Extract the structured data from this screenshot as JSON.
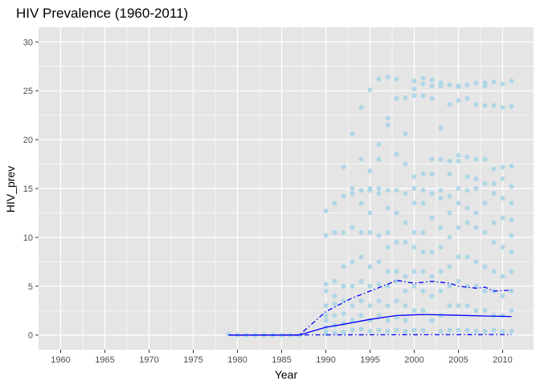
{
  "chart_data": {
    "type": "scatter",
    "title": "HIV Prevalence (1960-2011)",
    "xlabel": "Year",
    "ylabel": "HIV_prev",
    "xlim": [
      1957.5,
      2013.5
    ],
    "ylim": [
      -1.5,
      31.5
    ],
    "x_ticks": [
      1960,
      1965,
      1970,
      1975,
      1980,
      1985,
      1990,
      1995,
      2000,
      2005,
      2010
    ],
    "y_ticks": [
      0,
      5,
      10,
      15,
      20,
      25,
      30
    ],
    "grid": true,
    "legend": "none",
    "colors": {
      "panel": "#e5e5e5",
      "grid": "#ffffff",
      "points": "#a6d4e6",
      "lines": "#0000ff"
    },
    "series": [
      {
        "type": "scatter",
        "x": [
          1979,
          1980,
          1981,
          1982,
          1983,
          1984,
          1985,
          1986,
          1987,
          1990,
          1990,
          1990,
          1990,
          1990,
          1990,
          1990,
          1990,
          1990,
          1990,
          1991,
          1991,
          1991,
          1991,
          1991,
          1991,
          1991,
          1991,
          1992,
          1992,
          1992,
          1992,
          1992,
          1992,
          1992,
          1992,
          1992,
          1993,
          1993,
          1993,
          1993,
          1993,
          1993,
          1993,
          1993,
          1993,
          1994,
          1994,
          1994,
          1994,
          1994,
          1994,
          1994,
          1994,
          1994,
          1994,
          1995,
          1995,
          1995,
          1995,
          1995,
          1995,
          1995,
          1995,
          1995,
          1995,
          1995,
          1996,
          1996,
          1996,
          1996,
          1996,
          1996,
          1996,
          1996,
          1996,
          1996,
          1996,
          1997,
          1997,
          1997,
          1997,
          1997,
          1997,
          1997,
          1997,
          1997,
          1997,
          1997,
          1997,
          1998,
          1998,
          1998,
          1998,
          1998,
          1998,
          1998,
          1998,
          1998,
          1998,
          1998,
          1999,
          1999,
          1999,
          1999,
          1999,
          1999,
          1999,
          1999,
          1999,
          1999,
          1999,
          2000,
          2000,
          2000,
          2000,
          2000,
          2000,
          2000,
          2000,
          2000,
          2000,
          2000,
          2000,
          2001,
          2001,
          2001,
          2001,
          2001,
          2001,
          2001,
          2001,
          2001,
          2001,
          2001,
          2001,
          2002,
          2002,
          2002,
          2002,
          2002,
          2002,
          2002,
          2002,
          2002,
          2002,
          2002,
          2003,
          2003,
          2003,
          2003,
          2003,
          2003,
          2003,
          2003,
          2003,
          2003,
          2003,
          2003,
          2004,
          2004,
          2004,
          2004,
          2004,
          2004,
          2004,
          2004,
          2004,
          2004,
          2004,
          2005,
          2005,
          2005,
          2005,
          2005,
          2005,
          2005,
          2005,
          2005,
          2005,
          2005,
          2005,
          2006,
          2006,
          2006,
          2006,
          2006,
          2006,
          2006,
          2006,
          2006,
          2006,
          2006,
          2007,
          2007,
          2007,
          2007,
          2007,
          2007,
          2007,
          2007,
          2007,
          2007,
          2007,
          2008,
          2008,
          2008,
          2008,
          2008,
          2008,
          2008,
          2008,
          2008,
          2008,
          2008,
          2009,
          2009,
          2009,
          2009,
          2009,
          2009,
          2009,
          2009,
          2009,
          2009,
          2009,
          2010,
          2010,
          2010,
          2010,
          2010,
          2010,
          2010,
          2010,
          2010,
          2010,
          2010,
          2011,
          2011,
          2011,
          2011,
          2011,
          2011,
          2011,
          2011,
          2011,
          2011,
          2011,
          2011
        ],
        "y": [
          0.1,
          0,
          0,
          0,
          0,
          0,
          0,
          0,
          0,
          12.7,
          10.2,
          5.2,
          4.5,
          3.0,
          2.0,
          1.5,
          0.8,
          0.3,
          0.1,
          13.5,
          10.5,
          5.5,
          4.0,
          3.2,
          2.0,
          1.0,
          0.2,
          17.2,
          14.2,
          10.5,
          7.0,
          5.0,
          3.5,
          2.2,
          1.2,
          0.3,
          20.6,
          15.0,
          14.5,
          11.0,
          7.5,
          5.0,
          3.0,
          1.5,
          0.5,
          23.3,
          18.0,
          14.8,
          13.5,
          10.5,
          8.0,
          5.5,
          3.5,
          2.0,
          0.6,
          25.1,
          16.8,
          15.0,
          14.8,
          12.5,
          10.5,
          7.0,
          5.0,
          3.0,
          1.5,
          0.4,
          26.2,
          19.5,
          18.0,
          15.0,
          14.5,
          10.2,
          7.5,
          5.2,
          3.5,
          2.0,
          0.5,
          26.4,
          22.2,
          21.5,
          14.8,
          13.0,
          10.5,
          9.0,
          6.5,
          5.0,
          3.0,
          1.5,
          0.4,
          26.2,
          24.2,
          18.5,
          14.8,
          12.5,
          9.5,
          6.5,
          5.5,
          3.5,
          1.8,
          0.5,
          24.3,
          20.6,
          17.5,
          14.5,
          11.5,
          9.5,
          6.0,
          4.5,
          3.0,
          1.5,
          0.4,
          26.0,
          25.2,
          24.5,
          16.2,
          15.0,
          13.5,
          10.5,
          9.0,
          6.5,
          5.0,
          2.5,
          0.5,
          26.3,
          25.7,
          24.5,
          16.5,
          14.8,
          13.5,
          10.5,
          8.5,
          6.5,
          4.5,
          2.5,
          0.5,
          26.1,
          25.5,
          24.2,
          18.0,
          16.5,
          14.5,
          12.0,
          8.5,
          6.0,
          4.0,
          1.5,
          25.8,
          25.5,
          21.2,
          18.0,
          14.8,
          14.0,
          11.0,
          9.0,
          6.5,
          4.5,
          2.0,
          0.4,
          25.6,
          23.6,
          17.8,
          16.5,
          14.2,
          12.5,
          10.0,
          7.0,
          5.0,
          3.0,
          0.5,
          25.5,
          25.4,
          24.0,
          18.4,
          17.8,
          15.0,
          13.5,
          11.0,
          8.0,
          5.5,
          3.0,
          0.5,
          25.6,
          24.2,
          18.2,
          16.2,
          14.8,
          13.0,
          11.5,
          8.0,
          5.0,
          3.0,
          0.5,
          25.8,
          23.6,
          18.0,
          16.0,
          15.0,
          12.5,
          11.0,
          7.5,
          5.0,
          2.5,
          0.4,
          25.8,
          25.5,
          23.5,
          18.0,
          15.5,
          13.5,
          10.5,
          7.0,
          4.5,
          2.5,
          0.4,
          25.9,
          23.5,
          17.0,
          15.5,
          14.5,
          11.5,
          9.5,
          6.5,
          4.5,
          2.0,
          0.5,
          25.7,
          23.3,
          17.2,
          16.0,
          14.0,
          12.0,
          9.0,
          6.0,
          4.0,
          2.0,
          0.4,
          26.0,
          23.4,
          17.3,
          15.2,
          13.5,
          11.8,
          10.2,
          8.5,
          6.5,
          4.5,
          2.5,
          0.4
        ]
      },
      {
        "name": "",
        "type": "line",
        "style": "solid",
        "x": [
          1979,
          1987,
          1990,
          1992,
          1995,
          1998,
          2001,
          2004,
          2008,
          2011
        ],
        "y": [
          0,
          0,
          0.8,
          1.1,
          1.6,
          2.0,
          2.1,
          2.05,
          1.95,
          1.9
        ]
      },
      {
        "name": "",
        "type": "line",
        "style": "dashdot",
        "x": [
          1979,
          1987,
          1990,
          1993,
          1995,
          1997,
          1998,
          2000,
          2002,
          2004,
          2005,
          2007,
          2008,
          2009,
          2011
        ],
        "y": [
          0,
          0,
          2.4,
          3.8,
          4.5,
          5.2,
          5.6,
          5.3,
          5.5,
          5.3,
          5.0,
          4.8,
          4.9,
          4.5,
          4.6
        ]
      },
      {
        "name": "",
        "type": "line",
        "style": "dashdot",
        "x": [
          1979,
          2011
        ],
        "y": [
          0,
          0.05
        ]
      }
    ]
  }
}
